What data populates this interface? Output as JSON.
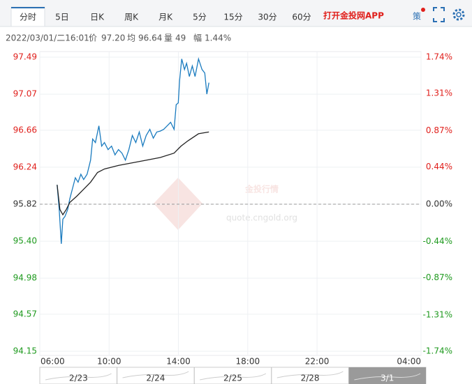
{
  "tabs": [
    "分时",
    "5日",
    "日K",
    "周K",
    "月K",
    "5分",
    "15分",
    "30分",
    "60分"
  ],
  "active_tab": 0,
  "app_link": "打开金投网APP",
  "strategy_icon": "策",
  "info": {
    "time": "2022/03/01/二16:01",
    "price_label": "价",
    "price": "97.20",
    "avg_label": "均",
    "avg": "96.64",
    "volume_label": "量",
    "volume": "49",
    "range_label": "幅",
    "range": "1.44%"
  },
  "watermark": {
    "title": "金投行情",
    "url": "quote.cngold.org"
  },
  "navigator": [
    "2/23",
    "2/24",
    "2/25",
    "2/28",
    "3/1"
  ],
  "chart_data": {
    "type": "line",
    "xlim": [
      6,
      28
    ],
    "xticks": [
      {
        "value": 6,
        "label": "06:00"
      },
      {
        "value": 10,
        "label": "10:00"
      },
      {
        "value": 14,
        "label": "14:00"
      },
      {
        "value": 18,
        "label": "18:00"
      },
      {
        "value": 22,
        "label": "22:00"
      },
      {
        "value": 28,
        "label": "04:00"
      }
    ],
    "ylim": [
      94.15,
      97.49
    ],
    "yticks": [
      97.49,
      97.07,
      96.66,
      96.24,
      95.82,
      {
        "value": 95.4,
        "label": "95.40"
      },
      94.98,
      94.57,
      94.15
    ],
    "y2lim": [
      -1.74,
      1.74
    ],
    "y2ticks": [
      {
        "value": 1.74,
        "label": "1.74%"
      },
      {
        "value": 1.31,
        "label": "1.31%"
      },
      {
        "value": 0.87,
        "label": "0.87%"
      },
      {
        "value": 0.44,
        "label": "0.44%"
      },
      {
        "value": 0,
        "label": "0.00%"
      },
      {
        "value": -0.44,
        "label": "-0.44%"
      },
      {
        "value": -0.87,
        "label": "-0.87%"
      },
      {
        "value": -1.31,
        "label": "-1.31%"
      },
      {
        "value": -1.74,
        "label": "-1.74%"
      }
    ],
    "prev_close": 95.82,
    "grid": true,
    "up_color": "#e0201c",
    "down_color": "#1f9a1f",
    "series": [
      {
        "color": "#1a7bbf",
        "x": [
          7.0,
          7.12,
          7.24,
          7.33,
          7.45,
          7.61,
          7.73,
          7.89,
          8.05,
          8.21,
          8.37,
          8.53,
          8.73,
          8.93,
          9.05,
          9.21,
          9.41,
          9.57,
          9.73,
          9.94,
          10.14,
          10.34,
          10.54,
          10.74,
          10.94,
          11.14,
          11.34,
          11.54,
          11.74,
          11.94,
          12.14,
          12.35,
          12.55,
          12.75,
          12.95,
          13.15,
          13.35,
          13.55,
          13.75,
          13.87,
          13.99,
          14.07,
          14.19,
          14.35,
          14.47,
          14.63,
          14.8,
          14.96,
          15.16,
          15.36,
          15.52,
          15.64,
          15.76
        ],
        "values": [
          96.04,
          95.76,
          95.37,
          95.65,
          95.68,
          95.76,
          95.88,
          96.0,
          96.12,
          96.07,
          96.16,
          96.1,
          96.16,
          96.32,
          96.56,
          96.52,
          96.71,
          96.48,
          96.52,
          96.44,
          96.48,
          96.38,
          96.44,
          96.4,
          96.32,
          96.44,
          96.6,
          96.52,
          96.64,
          96.48,
          96.6,
          96.67,
          96.57,
          96.64,
          96.65,
          96.67,
          96.71,
          96.75,
          96.67,
          96.95,
          96.97,
          97.23,
          97.47,
          97.35,
          97.42,
          97.27,
          97.39,
          97.27,
          97.47,
          97.35,
          97.31,
          97.07,
          97.2
        ]
      },
      {
        "color": "#222222",
        "x": [
          7.0,
          7.16,
          7.33,
          7.53,
          7.73,
          8.13,
          8.53,
          8.93,
          9.33,
          9.73,
          10.54,
          11.34,
          12.14,
          12.95,
          13.75,
          14.15,
          14.55,
          15.16,
          15.76
        ],
        "values": [
          96.04,
          95.76,
          95.7,
          95.76,
          95.84,
          95.91,
          95.99,
          96.07,
          96.18,
          96.22,
          96.26,
          96.29,
          96.32,
          96.35,
          96.4,
          96.48,
          96.54,
          96.62,
          96.64
        ]
      }
    ]
  }
}
